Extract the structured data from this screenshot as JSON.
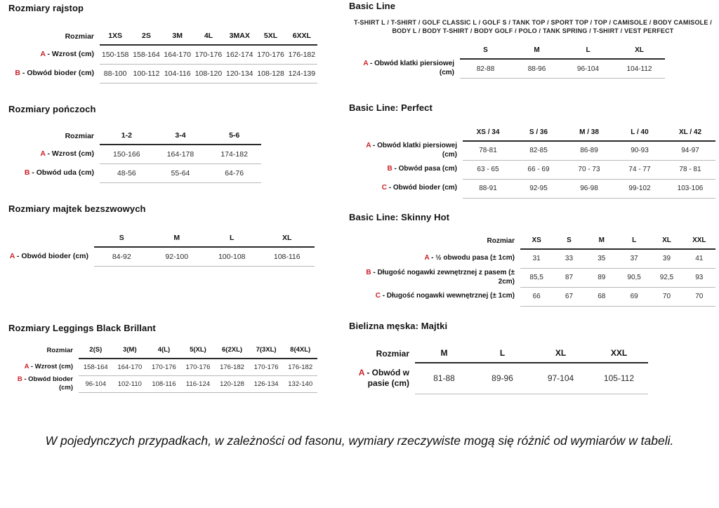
{
  "colors": {
    "accent_red": "#cc2027",
    "text": "#1a1a1a",
    "header_line": "#2a2a2a",
    "row_line": "#b9b9b9"
  },
  "note": "W pojedynczych przypadkach, w zależności od fasonu, wymiary rzeczywiste mogą się różnić od wymiarów w tabeli.",
  "sections": {
    "rajstop": {
      "title": "Rozmiary rajstop",
      "table": {
        "corner": "Rozmiar",
        "columns": [
          "1XS",
          "2S",
          "3M",
          "4L",
          "3MAX",
          "5XL",
          "6XXL"
        ],
        "rows": [
          {
            "letter": "A",
            "label": "- Wzrost (cm)",
            "values": [
              "150-158",
              "158-164",
              "164-170",
              "170-176",
              "162-174",
              "170-176",
              "176-182"
            ]
          },
          {
            "letter": "B",
            "label": "- Obwód bioder (cm)",
            "values": [
              "88-100",
              "100-112",
              "104-116",
              "108-120",
              "120-134",
              "108-128",
              "124-139"
            ]
          }
        ]
      }
    },
    "ponczoch": {
      "title": "Rozmiary pończoch",
      "table": {
        "corner": "Rozmiar",
        "columns": [
          "1-2",
          "3-4",
          "5-6"
        ],
        "rows": [
          {
            "letter": "A",
            "label": "- Wzrost (cm)",
            "values": [
              "150-166",
              "164-178",
              "174-182"
            ]
          },
          {
            "letter": "B",
            "label": "- Obwód uda (cm)",
            "values": [
              "48-56",
              "55-64",
              "64-76"
            ]
          }
        ]
      }
    },
    "majtek": {
      "title": "Rozmiary majtek bezszwowych",
      "table": {
        "corner": "",
        "columns": [
          "S",
          "M",
          "L",
          "XL"
        ],
        "rows": [
          {
            "letter": "A",
            "label": "- Obwód bioder (cm)",
            "values": [
              "84-92",
              "92-100",
              "100-108",
              "108-116"
            ]
          }
        ]
      }
    },
    "leggings": {
      "title": "Rozmiary Leggings Black Brillant",
      "table": {
        "corner": "Rozmiar",
        "columns": [
          "2(S)",
          "3(M)",
          "4(L)",
          "5(XL)",
          "6(2XL)",
          "7(3XL)",
          "8(4XL)"
        ],
        "rows": [
          {
            "letter": "A",
            "label": "- Wzrost (cm)",
            "values": [
              "158-164",
              "164-170",
              "170-176",
              "170-176",
              "176-182",
              "170-176",
              "176-182"
            ]
          },
          {
            "letter": "B",
            "label": "- Obwód bioder (cm)",
            "values": [
              "96-104",
              "102-110",
              "108-116",
              "116-124",
              "120-128",
              "126-134",
              "132-140"
            ]
          }
        ]
      }
    },
    "basic_line": {
      "title": "Basic Line",
      "subtitle": "T-SHIRT L / T-SHIRT / GOLF CLASSIC L / GOLF S / TANK TOP / SPORT TOP / TOP / CAMISOLE / BODY CAMISOLE / BODY L / BODY T-SHIRT / BODY GOLF / POLO / TANK SPRING / T-SHIRT / VEST PERFECT",
      "table": {
        "corner": "",
        "columns": [
          "S",
          "M",
          "L",
          "XL"
        ],
        "rows": [
          {
            "letter": "A",
            "label": "- Obwód klatki piersiowej (cm)",
            "values": [
              "82-88",
              "88-96",
              "96-104",
              "104-112"
            ]
          }
        ]
      }
    },
    "perfect": {
      "title": "Basic Line: Perfect",
      "table": {
        "corner": "",
        "columns": [
          "XS / 34",
          "S / 36",
          "M / 38",
          "L / 40",
          "XL / 42"
        ],
        "rows": [
          {
            "letter": "A",
            "label": "- Obwód klatki piersiowej (cm)",
            "values": [
              "78-81",
              "82-85",
              "86-89",
              "90-93",
              "94-97"
            ]
          },
          {
            "letter": "B",
            "label": "- Obwód pasa (cm)",
            "values": [
              "63 - 65",
              "66 - 69",
              "70 - 73",
              "74 - 77",
              "78 - 81"
            ]
          },
          {
            "letter": "C",
            "label": "- Obwód bioder (cm)",
            "values": [
              "88-91",
              "92-95",
              "96-98",
              "99-102",
              "103-106"
            ]
          }
        ]
      }
    },
    "skinny_hot": {
      "title": "Basic Line: Skinny Hot",
      "table": {
        "corner": "Rozmiar",
        "columns": [
          "XS",
          "S",
          "M",
          "L",
          "XL",
          "XXL"
        ],
        "rows": [
          {
            "letter": "A",
            "label": "- ½ obwodu pasa (± 1cm)",
            "values": [
              "31",
              "33",
              "35",
              "37",
              "39",
              "41"
            ]
          },
          {
            "letter": "B",
            "label": "- Długość nogawki zewnętrznej z pasem (± 2cm)",
            "values": [
              "85,5",
              "87",
              "89",
              "90,5",
              "92,5",
              "93"
            ]
          },
          {
            "letter": "C",
            "label": "- Długość nogawki wewnętrznej (± 1cm)",
            "values": [
              "66",
              "67",
              "68",
              "69",
              "70",
              "70"
            ]
          }
        ]
      }
    },
    "majtki": {
      "title": "Bielizna męska: Majtki",
      "table": {
        "corner": "Rozmiar",
        "columns": [
          "M",
          "L",
          "XL",
          "XXL"
        ],
        "rows": [
          {
            "letter": "A",
            "label": "- Obwód w pasie (cm)",
            "values": [
              "81-88",
              "89-96",
              "97-104",
              "105-112"
            ]
          }
        ]
      }
    }
  }
}
